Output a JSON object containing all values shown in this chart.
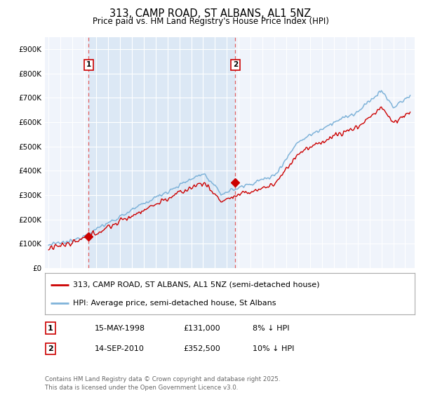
{
  "title": "313, CAMP ROAD, ST ALBANS, AL1 5NZ",
  "subtitle": "Price paid vs. HM Land Registry's House Price Index (HPI)",
  "ylim": [
    0,
    950000
  ],
  "yticks": [
    0,
    100000,
    200000,
    300000,
    400000,
    500000,
    600000,
    700000,
    800000,
    900000
  ],
  "ytick_labels": [
    "£0",
    "£100K",
    "£200K",
    "£300K",
    "£400K",
    "£500K",
    "£600K",
    "£700K",
    "£800K",
    "£900K"
  ],
  "background_color": "#ffffff",
  "plot_bg_color": "#f0f4fb",
  "highlight_bg_color": "#dce8f5",
  "grid_color": "#ffffff",
  "hpi_line_color": "#7fb3d9",
  "price_line_color": "#cc0000",
  "dashed_line_color": "#e06060",
  "sale1_price": 131000,
  "sale1_x": 1998.37,
  "sale2_price": 352500,
  "sale2_x": 2010.71,
  "legend_label1": "313, CAMP ROAD, ST ALBANS, AL1 5NZ (semi-detached house)",
  "legend_label2": "HPI: Average price, semi-detached house, St Albans",
  "table_row1": [
    "1",
    "15-MAY-1998",
    "£131,000",
    "8% ↓ HPI"
  ],
  "table_row2": [
    "2",
    "14-SEP-2010",
    "£352,500",
    "10% ↓ HPI"
  ],
  "footnote": "Contains HM Land Registry data © Crown copyright and database right 2025.\nThis data is licensed under the Open Government Licence v3.0.",
  "title_fontsize": 10.5,
  "subtitle_fontsize": 8.5,
  "tick_fontsize": 7.5,
  "legend_fontsize": 8
}
